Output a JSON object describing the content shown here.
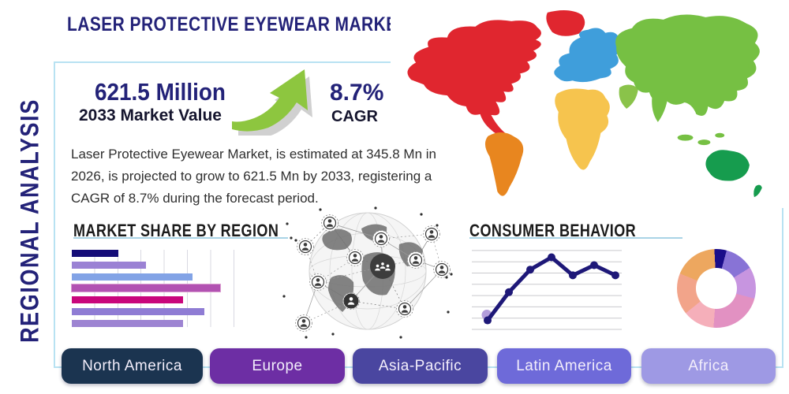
{
  "header": {
    "title": "LASER PROTECTIVE EYEWEAR MARKET",
    "side_label": "REGIONAL ANALYSIS"
  },
  "stats": {
    "market_value": "621.5 Million",
    "market_value_label": "2033 Market Value",
    "cagr_value": "8.7%",
    "cagr_label": "CAGR"
  },
  "description": "Laser Protective Eyewear Market, is estimated at 345.8 Mn in 2026, is projected to grow to 621.5 Mn by 2033, registering a CAGR of 8.7% during the forecast period.",
  "region_tabs": [
    {
      "label": "North America",
      "color": "#1b3450"
    },
    {
      "label": "Europe",
      "color": "#6d2ea4"
    },
    {
      "label": "Asia-Pacific",
      "color": "#4a46a0"
    },
    {
      "label": "Latin America",
      "color": "#6e6ad9"
    },
    {
      "label": "Africa",
      "color": "#9e99e4"
    }
  ],
  "map_colors": {
    "north_america": "#e0262f",
    "greenland": "#e0262f",
    "south_america": "#e8861f",
    "europe": "#3f9edb",
    "africa_continent": "#f6c44e",
    "asia": "#76c043",
    "middle_east": "#8ac34a",
    "southeast_asia": "#76c043",
    "india": "#76c043",
    "australia": "#169c4e",
    "new_zealand": "#169c4e"
  },
  "accent": {
    "frame_border": "#b8e2f2",
    "underline": "#a9d3e6",
    "navy": "#232278",
    "arrow_green": "#8dc63f"
  },
  "chart_data": [
    {
      "type": "bar",
      "title": "MARKET SHARE BY REGION",
      "orientation": "horizontal",
      "categories_labeled": false,
      "axis_labels_visible": false,
      "grid": "vertical",
      "gridline_unit_note": "values estimated in unlabeled gridline units (1 unit = 1 gridline spacing)",
      "values_gridline_units": [
        2.0,
        3.2,
        5.2,
        6.4,
        4.8,
        5.7,
        4.8
      ],
      "colors": [
        "#150d78",
        "#9b82d4",
        "#82a3e6",
        "#b252b2",
        "#c9067c",
        "#8f7cd4",
        "#9d84d2"
      ],
      "outlined_index": 3,
      "outline_color": "#db9ed0"
    },
    {
      "type": "line",
      "title": "CONSUMER BEHAVIOR",
      "x": [
        1,
        2,
        3,
        4,
        5,
        6,
        7
      ],
      "axis_labels_visible": false,
      "grid": "horizontal",
      "gridline_unit_note": "values estimated in unlabeled gridline units from bottom gridline",
      "values_gridline_units": [
        0.8,
        3.3,
        5.3,
        6.4,
        4.8,
        5.7,
        4.8
      ],
      "ylim": [
        0,
        7
      ],
      "color": "#1e1878",
      "first_point_halo_color": "#b39ddb"
    },
    {
      "type": "pie",
      "donut": true,
      "labels_visible": false,
      "start_angle_deg": -3,
      "values_percent": [
        5,
        12,
        13,
        22,
        13,
        17,
        18
      ],
      "colors": [
        "#1a0d8a",
        "#8873d6",
        "#c795e0",
        "#e291c2",
        "#f5afba",
        "#f2a48a",
        "#eda75f"
      ]
    }
  ]
}
